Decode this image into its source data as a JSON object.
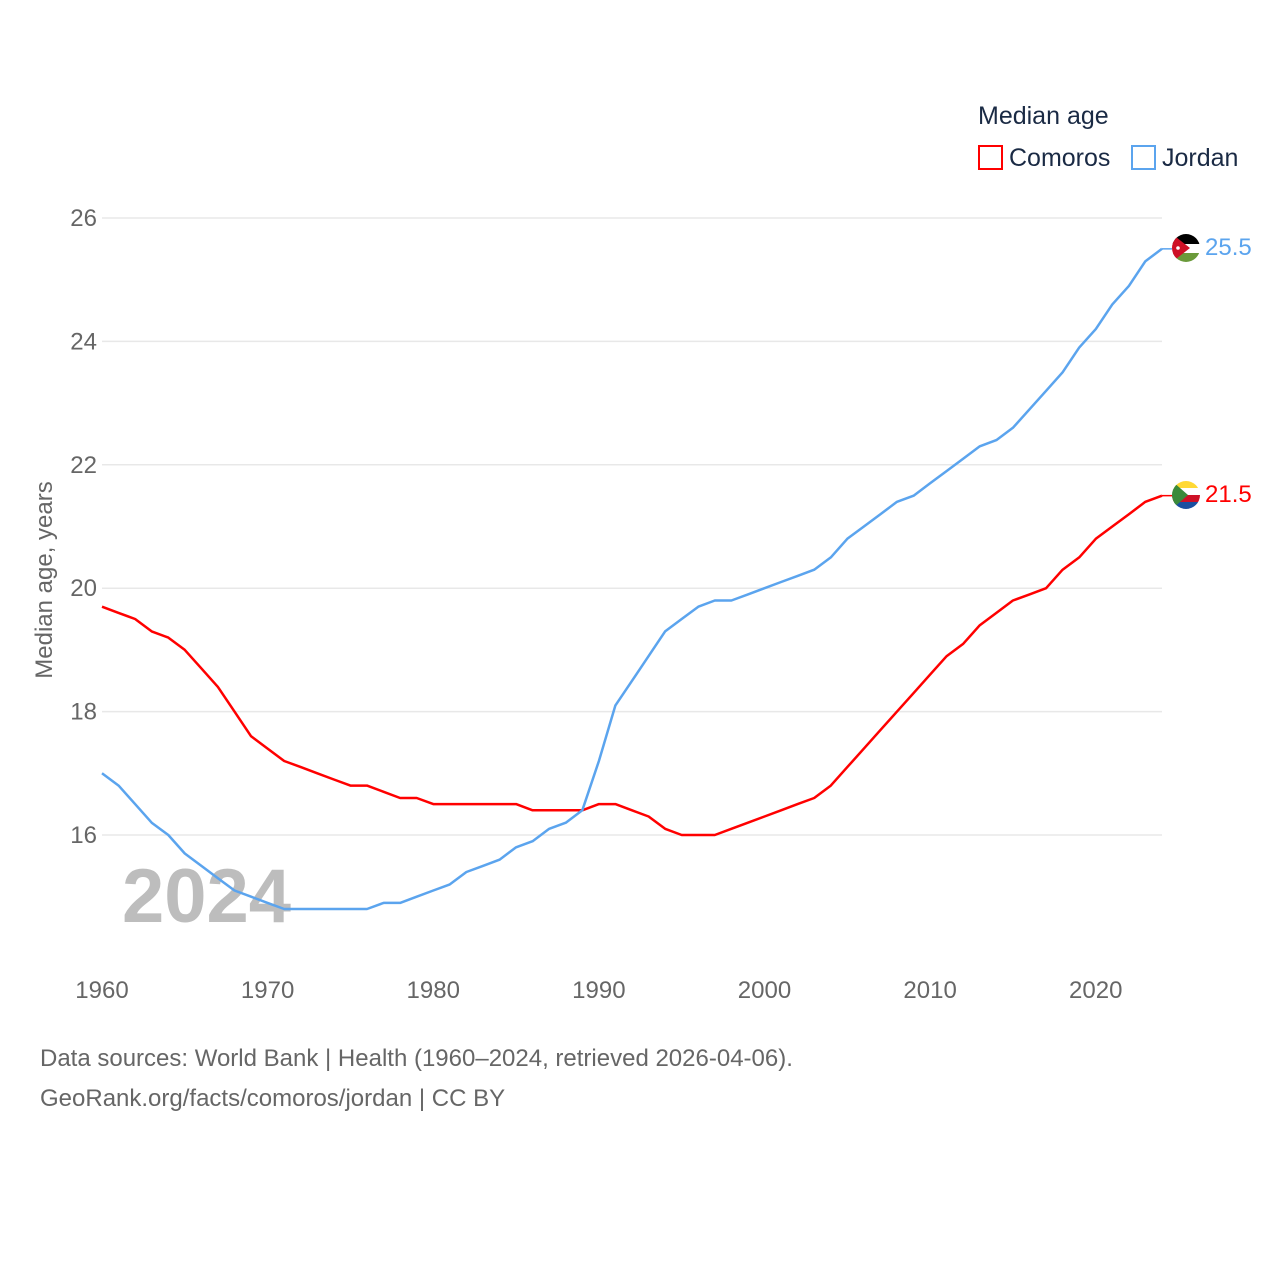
{
  "chart_data": {
    "type": "line",
    "title": "",
    "legend_title": "Median age",
    "legend_placement": "top-right",
    "xlabel": "",
    "ylabel": "Median age, years",
    "xlim": [
      1960,
      2024
    ],
    "ylim": [
      14.3,
      26.3
    ],
    "x_ticks": [
      1960,
      1970,
      1980,
      1990,
      2000,
      2010,
      2020
    ],
    "y_ticks": [
      16,
      18,
      20,
      22,
      24,
      26
    ],
    "grid": true,
    "year_watermark": "2024",
    "x_start": 1960,
    "series": [
      {
        "name": "Comoros",
        "color": "#ff0000",
        "end_label": "21.5",
        "values": [
          19.7,
          19.6,
          19.5,
          19.3,
          19.2,
          19.0,
          18.7,
          18.4,
          18.0,
          17.6,
          17.4,
          17.2,
          17.1,
          17.0,
          16.9,
          16.8,
          16.8,
          16.7,
          16.6,
          16.6,
          16.5,
          16.5,
          16.5,
          16.5,
          16.5,
          16.5,
          16.4,
          16.4,
          16.4,
          16.4,
          16.5,
          16.5,
          16.4,
          16.3,
          16.1,
          16.0,
          16.0,
          16.0,
          16.1,
          16.2,
          16.3,
          16.4,
          16.5,
          16.6,
          16.8,
          17.1,
          17.4,
          17.7,
          18.0,
          18.3,
          18.6,
          18.9,
          19.1,
          19.4,
          19.6,
          19.8,
          19.9,
          20.0,
          20.3,
          20.5,
          20.8,
          21.0,
          21.2,
          21.4,
          21.5
        ]
      },
      {
        "name": "Jordan",
        "color": "#5ba4ee",
        "end_label": "25.5",
        "values": [
          17.0,
          16.8,
          16.5,
          16.2,
          16.0,
          15.7,
          15.5,
          15.3,
          15.1,
          15.0,
          14.9,
          14.8,
          14.8,
          14.8,
          14.8,
          14.8,
          14.8,
          14.9,
          14.9,
          15.0,
          15.1,
          15.2,
          15.4,
          15.5,
          15.6,
          15.8,
          15.9,
          16.1,
          16.2,
          16.4,
          17.2,
          18.1,
          18.5,
          18.9,
          19.3,
          19.5,
          19.7,
          19.8,
          19.8,
          19.9,
          20.0,
          20.1,
          20.2,
          20.3,
          20.5,
          20.8,
          21.0,
          21.2,
          21.4,
          21.5,
          21.7,
          21.9,
          22.1,
          22.3,
          22.4,
          22.6,
          22.9,
          23.2,
          23.5,
          23.9,
          24.2,
          24.6,
          24.9,
          25.3,
          25.5
        ]
      }
    ]
  },
  "footer": {
    "sources": "Data sources: World Bank | Health (1960–2024, retrieved 2026-04-06).",
    "credit": "GeoRank.org/facts/comoros/jordan | CC BY"
  }
}
